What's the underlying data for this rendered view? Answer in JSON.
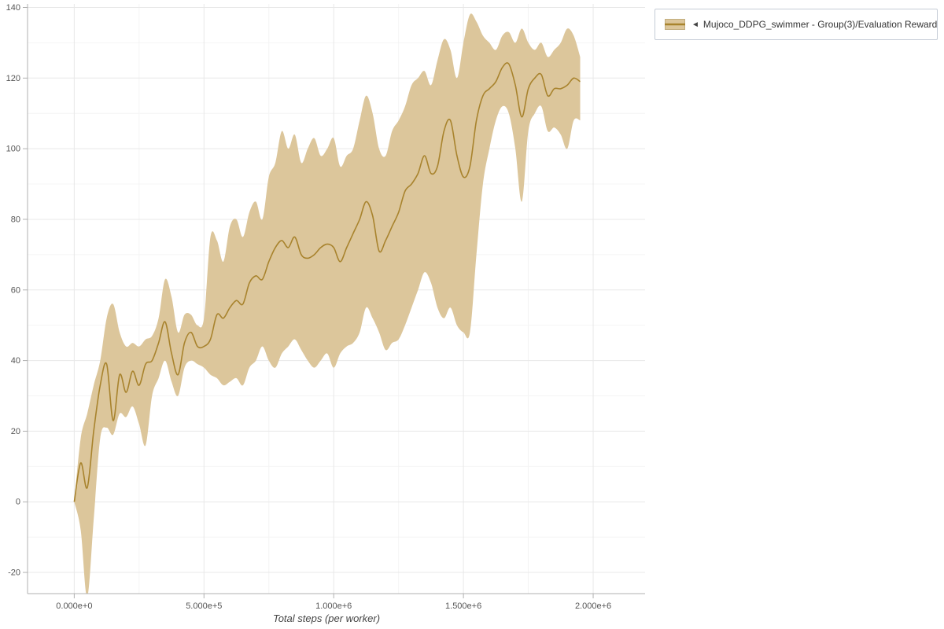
{
  "legend": {
    "collapse_icon": "◄",
    "label": "Mujoco_DDPG_swimmer - Group(3)/Evaluation Reward"
  },
  "chart_data": {
    "type": "line",
    "title": "",
    "xlabel": "Total steps (per worker)",
    "ylabel": "",
    "legend_position": "top-right",
    "grid": true,
    "x_tick_labels": [
      "0.000e+0",
      "5.000e+5",
      "1.000e+6",
      "1.500e+6",
      "2.000e+6"
    ],
    "x_tick_values": [
      0,
      500000,
      1000000,
      1500000,
      2000000
    ],
    "y_ticks": [
      -20,
      0,
      20,
      40,
      60,
      80,
      100,
      120,
      140
    ],
    "xlim": [
      -180000,
      2200000
    ],
    "ylim": [
      -26,
      141
    ],
    "colors": {
      "line": "#a8832d",
      "band": "#dcc69b",
      "grid": "#e8e8e8",
      "grid_minor": "#f4f4f4",
      "axis": "#b0b0b0",
      "tick_text": "#555555"
    },
    "series": [
      {
        "name": "Mujoco_DDPG_swimmer - Group(3)/Evaluation Reward",
        "x": [
          0,
          25000,
          50000,
          75000,
          100000,
          125000,
          150000,
          175000,
          200000,
          225000,
          250000,
          275000,
          300000,
          325000,
          350000,
          375000,
          400000,
          425000,
          450000,
          475000,
          500000,
          525000,
          550000,
          575000,
          600000,
          625000,
          650000,
          675000,
          700000,
          725000,
          750000,
          775000,
          800000,
          825000,
          850000,
          875000,
          900000,
          925000,
          950000,
          975000,
          1000000,
          1025000,
          1050000,
          1075000,
          1100000,
          1125000,
          1150000,
          1175000,
          1200000,
          1225000,
          1250000,
          1275000,
          1300000,
          1325000,
          1350000,
          1375000,
          1400000,
          1425000,
          1450000,
          1475000,
          1500000,
          1525000,
          1550000,
          1575000,
          1600000,
          1625000,
          1650000,
          1675000,
          1700000,
          1725000,
          1750000,
          1775000,
          1800000,
          1825000,
          1850000,
          1875000,
          1900000,
          1925000,
          1950000
        ],
        "mean": [
          0,
          11,
          4,
          20,
          33,
          39,
          23,
          36,
          31,
          37,
          33,
          39,
          40,
          45,
          51,
          42,
          36,
          45,
          48,
          44,
          44,
          46,
          53,
          52,
          55,
          57,
          56,
          62,
          64,
          63,
          68,
          72,
          74,
          72,
          75,
          70,
          69,
          70,
          72,
          73,
          72,
          68,
          72,
          76,
          80,
          85,
          81,
          71,
          74,
          78,
          82,
          88,
          90,
          93,
          98,
          93,
          95,
          105,
          108,
          98,
          92,
          95,
          108,
          115,
          117,
          119,
          123,
          124,
          118,
          109,
          117,
          120,
          121,
          115,
          117,
          117,
          118,
          120,
          119
        ],
        "lower": [
          0,
          -8,
          -27,
          -5,
          18,
          21,
          19,
          25,
          24,
          27,
          22,
          16,
          30,
          35,
          40,
          34,
          30,
          38,
          40,
          39,
          38,
          36,
          35,
          33,
          34,
          35,
          33,
          38,
          40,
          44,
          40,
          38,
          42,
          44,
          46,
          43,
          40,
          38,
          40,
          42,
          38,
          42,
          44,
          45,
          48,
          55,
          52,
          48,
          43,
          45,
          46,
          50,
          55,
          60,
          65,
          62,
          55,
          52,
          55,
          50,
          48,
          48,
          70,
          90,
          100,
          108,
          112,
          110,
          100,
          85,
          105,
          110,
          112,
          105,
          106,
          104,
          100,
          108,
          108
        ],
        "upper": [
          0,
          18,
          25,
          33,
          40,
          52,
          56,
          48,
          44,
          45,
          44,
          46,
          47,
          52,
          63,
          58,
          48,
          53,
          53,
          50,
          52,
          75,
          74,
          68,
          78,
          80,
          75,
          82,
          85,
          80,
          92,
          96,
          105,
          100,
          104,
          96,
          100,
          103,
          98,
          100,
          103,
          95,
          98,
          100,
          108,
          115,
          110,
          100,
          98,
          105,
          108,
          112,
          118,
          120,
          122,
          118,
          125,
          131,
          128,
          120,
          130,
          138,
          136,
          132,
          130,
          128,
          132,
          133,
          130,
          134,
          130,
          128,
          130,
          126,
          128,
          130,
          134,
          132,
          126
        ]
      }
    ]
  }
}
